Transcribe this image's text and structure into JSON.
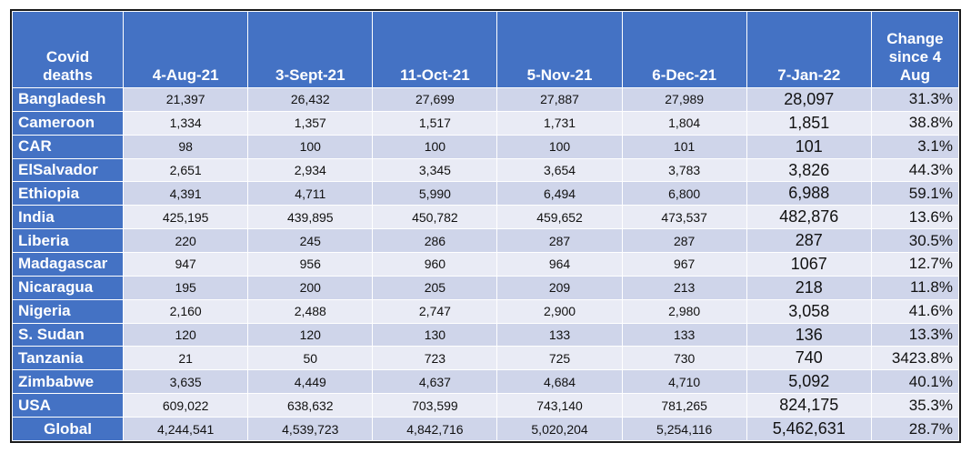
{
  "table": {
    "corner_label": "Covid deaths",
    "date_headers": [
      "4-Aug-21",
      "3-Sept-21",
      "11-Oct-21",
      "5-Nov-21",
      "6-Dec-21",
      "7-Jan-22"
    ],
    "change_header": "Change since 4 Aug",
    "rows": [
      {
        "country": "Bangladesh",
        "values": [
          "21,397",
          "26,432",
          "27,699",
          "27,887",
          "27,989",
          "28,097"
        ],
        "change": "31.3%"
      },
      {
        "country": "Cameroon",
        "values": [
          "1,334",
          "1,357",
          "1,517",
          "1,731",
          "1,804",
          "1,851"
        ],
        "change": "38.8%"
      },
      {
        "country": "CAR",
        "values": [
          "98",
          "100",
          "100",
          "100",
          "101",
          "101"
        ],
        "change": "3.1%"
      },
      {
        "country": "ElSalvador",
        "values": [
          "2,651",
          "2,934",
          "3,345",
          "3,654",
          "3,783",
          "3,826"
        ],
        "change": "44.3%"
      },
      {
        "country": "Ethiopia",
        "values": [
          "4,391",
          "4,711",
          "5,990",
          "6,494",
          "6,800",
          "6,988"
        ],
        "change": "59.1%"
      },
      {
        "country": "India",
        "values": [
          "425,195",
          "439,895",
          "450,782",
          "459,652",
          "473,537",
          "482,876"
        ],
        "change": "13.6%"
      },
      {
        "country": "Liberia",
        "values": [
          "220",
          "245",
          "286",
          "287",
          "287",
          "287"
        ],
        "change": "30.5%"
      },
      {
        "country": "Madagascar",
        "values": [
          "947",
          "956",
          "960",
          "964",
          "967",
          "1067"
        ],
        "change": "12.7%"
      },
      {
        "country": "Nicaragua",
        "values": [
          "195",
          "200",
          "205",
          "209",
          "213",
          "218"
        ],
        "change": "11.8%"
      },
      {
        "country": "Nigeria",
        "values": [
          "2,160",
          "2,488",
          "2,747",
          "2,900",
          "2,980",
          "3,058"
        ],
        "change": "41.6%"
      },
      {
        "country": "S. Sudan",
        "values": [
          "120",
          "120",
          "130",
          "133",
          "133",
          "136"
        ],
        "change": "13.3%"
      },
      {
        "country": "Tanzania",
        "values": [
          "21",
          "50",
          "723",
          "725",
          "730",
          "740"
        ],
        "change": "3423.8%"
      },
      {
        "country": "Zimbabwe",
        "values": [
          "3,635",
          "4,449",
          "4,637",
          "4,684",
          "4,710",
          "5,092"
        ],
        "change": "40.1%"
      },
      {
        "country": "USA",
        "values": [
          "609,022",
          "638,632",
          "703,599",
          "743,140",
          "781,265",
          "824,175"
        ],
        "change": "35.3%"
      },
      {
        "country": "Global",
        "values": [
          "4,244,541",
          "4,539,723",
          "4,842,716",
          "5,020,204",
          "5,254,116",
          "5,462,631"
        ],
        "change": "28.7%"
      }
    ]
  },
  "colors": {
    "header_bg": "#4472c4",
    "row_odd_bg": "#cfd5ea",
    "row_even_bg": "#e9ebf5",
    "border": "#1a1a1a"
  }
}
